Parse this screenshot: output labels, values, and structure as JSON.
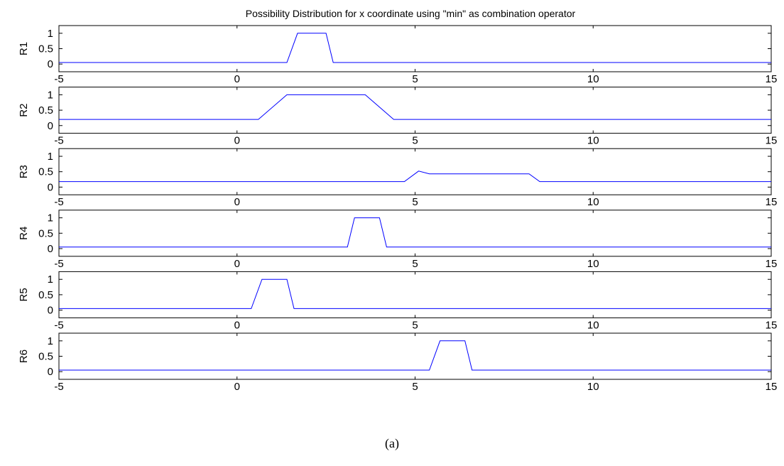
{
  "chart_data": {
    "type": "line",
    "title": "Possibility Distribution for x coordinate using \"min\" as combination operator",
    "caption": "(a)",
    "xlim": [
      -5,
      15
    ],
    "ylim": [
      -0.25,
      1.25
    ],
    "xticks": [
      -5,
      0,
      5,
      10,
      15
    ],
    "yticks": [
      0,
      0.5,
      1
    ],
    "line_color": "#0000ff",
    "axis_color": "#000000",
    "grid": false,
    "subplots": [
      {
        "ylabel": "R1",
        "x": [
          -5,
          1.4,
          1.7,
          2.5,
          2.7,
          15
        ],
        "y": [
          0.05,
          0.05,
          1,
          1,
          0.05,
          0.05
        ]
      },
      {
        "ylabel": "R2",
        "x": [
          -5,
          0.6,
          1.4,
          3.6,
          4.4,
          15
        ],
        "y": [
          0.2,
          0.2,
          1,
          1,
          0.2,
          0.2
        ]
      },
      {
        "ylabel": "R3",
        "x": [
          -5,
          4.7,
          5.1,
          5.4,
          8.2,
          8.5,
          15
        ],
        "y": [
          0.18,
          0.18,
          0.52,
          0.43,
          0.43,
          0.18,
          0.18
        ]
      },
      {
        "ylabel": "R4",
        "x": [
          -5,
          3.1,
          3.3,
          4.0,
          4.2,
          15
        ],
        "y": [
          0.05,
          0.05,
          1,
          1,
          0.05,
          0.05
        ]
      },
      {
        "ylabel": "R5",
        "x": [
          -5,
          0.4,
          0.7,
          1.4,
          1.6,
          15
        ],
        "y": [
          0.05,
          0.05,
          1,
          1,
          0.05,
          0.05
        ]
      },
      {
        "ylabel": "R6",
        "x": [
          -5,
          5.4,
          5.7,
          6.4,
          6.6,
          15
        ],
        "y": [
          0.05,
          0.05,
          1,
          1,
          0.05,
          0.05
        ]
      }
    ]
  }
}
